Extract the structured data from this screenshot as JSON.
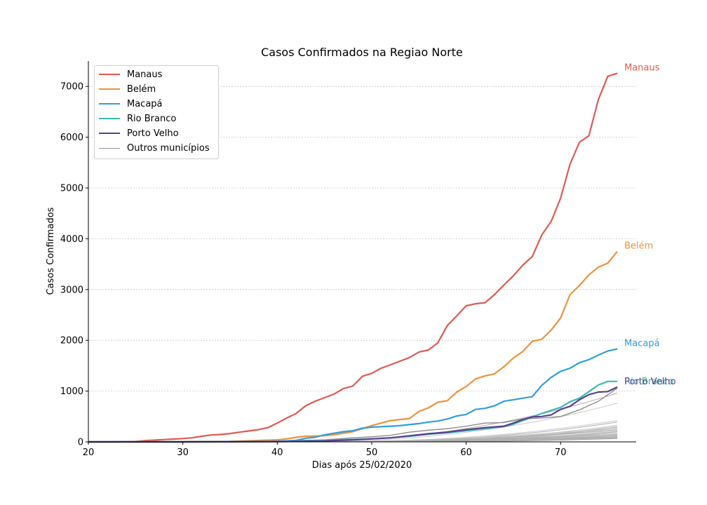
{
  "chart_data": {
    "type": "line",
    "title": "Casos Confirmados na Regiao Norte",
    "xlabel": "Dias após 25/02/2020",
    "ylabel": "Casos Confirmados",
    "xlim": [
      20,
      78
    ],
    "ylim": [
      0,
      7500
    ],
    "x_ticks": [
      20,
      30,
      40,
      50,
      60,
      70
    ],
    "y_ticks": [
      0,
      1000,
      2000,
      3000,
      4000,
      5000,
      6000,
      7000
    ],
    "grid": "horizontal",
    "legend_position": "top-left",
    "series": [
      {
        "name": "Manaus",
        "color": "#e05a4f",
        "end_label": "Manaus",
        "x": [
          20,
          22,
          24,
          25,
          26,
          27,
          28,
          29,
          30,
          31,
          32,
          33,
          34,
          35,
          36,
          37,
          38,
          39,
          40,
          41,
          42,
          43,
          44,
          45,
          46,
          47,
          48,
          49,
          50,
          51,
          52,
          53,
          54,
          55,
          56,
          57,
          58,
          59,
          60,
          61,
          62,
          63,
          64,
          65,
          66,
          67,
          68,
          69,
          70,
          71,
          72,
          73,
          74,
          75,
          76
        ],
        "y": [
          0,
          2,
          5,
          10,
          25,
          35,
          45,
          55,
          65,
          80,
          110,
          135,
          145,
          165,
          190,
          215,
          240,
          280,
          370,
          470,
          560,
          710,
          800,
          870,
          940,
          1050,
          1100,
          1290,
          1350,
          1450,
          1520,
          1590,
          1660,
          1770,
          1810,
          1950,
          2290,
          2480,
          2680,
          2720,
          2740,
          2900,
          3090,
          3270,
          3480,
          3650,
          4070,
          4340,
          4800,
          5470,
          5900,
          6030,
          6740,
          7200,
          7260
        ]
      },
      {
        "name": "Belém",
        "color": "#f0923a",
        "end_label": "Belém",
        "x": [
          20,
          25,
          30,
          35,
          40,
          41,
          42,
          43,
          44,
          45,
          46,
          47,
          48,
          49,
          50,
          51,
          52,
          53,
          54,
          55,
          56,
          57,
          58,
          59,
          60,
          61,
          62,
          63,
          64,
          65,
          66,
          67,
          68,
          69,
          70,
          71,
          72,
          73,
          74,
          75,
          76
        ],
        "y": [
          0,
          2,
          5,
          10,
          40,
          60,
          90,
          110,
          115,
          120,
          140,
          170,
          200,
          260,
          320,
          370,
          420,
          440,
          460,
          600,
          670,
          780,
          810,
          980,
          1090,
          1240,
          1300,
          1340,
          1480,
          1650,
          1780,
          1980,
          2020,
          2200,
          2440,
          2900,
          3080,
          3290,
          3440,
          3520,
          3750
        ]
      },
      {
        "name": "Macapá",
        "color": "#2f9ee0",
        "end_label": "Macapá",
        "x": [
          20,
          30,
          40,
          42,
          43,
          44,
          45,
          46,
          47,
          48,
          49,
          50,
          51,
          52,
          53,
          54,
          55,
          56,
          57,
          58,
          59,
          60,
          61,
          62,
          63,
          64,
          65,
          66,
          67,
          68,
          69,
          70,
          71,
          72,
          73,
          74,
          75,
          76
        ],
        "y": [
          0,
          0,
          10,
          30,
          70,
          90,
          140,
          170,
          200,
          220,
          270,
          290,
          300,
          310,
          320,
          340,
          360,
          390,
          410,
          450,
          510,
          540,
          640,
          660,
          710,
          800,
          830,
          860,
          890,
          1110,
          1270,
          1390,
          1450,
          1560,
          1620,
          1710,
          1790,
          1830
        ]
      },
      {
        "name": "Rio Branco",
        "color": "#3bbab5",
        "end_label": "Rio Branco",
        "x": [
          20,
          30,
          40,
          45,
          50,
          52,
          54,
          56,
          58,
          60,
          62,
          64,
          65,
          66,
          67,
          68,
          69,
          70,
          71,
          72,
          73,
          74,
          75,
          76
        ],
        "y": [
          0,
          2,
          10,
          30,
          60,
          80,
          110,
          150,
          180,
          220,
          260,
          300,
          350,
          420,
          490,
          560,
          620,
          680,
          790,
          860,
          990,
          1120,
          1190,
          1190
        ]
      },
      {
        "name": "Porto Velho",
        "color": "#5b3f8e",
        "end_label": "Porto Velho",
        "x": [
          20,
          30,
          40,
          45,
          48,
          50,
          52,
          54,
          56,
          58,
          60,
          62,
          64,
          65,
          66,
          67,
          68,
          69,
          70,
          71,
          72,
          73,
          74,
          75,
          76
        ],
        "y": [
          0,
          0,
          5,
          20,
          40,
          60,
          80,
          120,
          160,
          190,
          240,
          280,
          310,
          370,
          440,
          490,
          500,
          530,
          640,
          700,
          830,
          930,
          980,
          990,
          1080
        ]
      }
    ],
    "others": {
      "name": "Outros municípios",
      "color": "#888888",
      "x": [
        20,
        30,
        40,
        45,
        48,
        50,
        52,
        54,
        56,
        58,
        60,
        62,
        64,
        66,
        68,
        70,
        72,
        74,
        76
      ],
      "finals": [
        960,
        760,
        420,
        390,
        330,
        310,
        290,
        280,
        260,
        240,
        230,
        210,
        200,
        180,
        170,
        150,
        140,
        130,
        120,
        110,
        100,
        95,
        90,
        85,
        80,
        75,
        70,
        65
      ],
      "highlight": {
        "y": [
          0,
          5,
          20,
          40,
          80,
          100,
          130,
          190,
          230,
          260,
          310,
          370,
          380,
          450,
          470,
          500,
          630,
          800,
          1060
        ]
      }
    }
  }
}
